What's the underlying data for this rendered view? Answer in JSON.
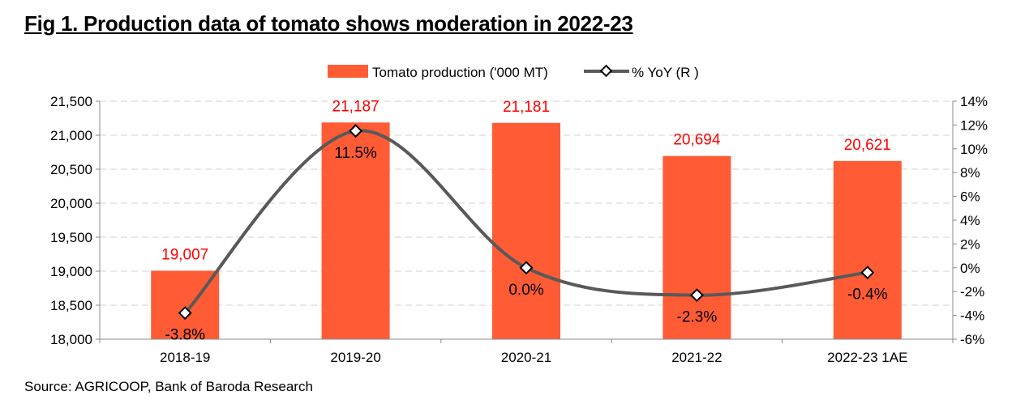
{
  "title": "Fig 1.  Production data of tomato shows moderation in 2022-23",
  "source": "Source: AGRICOOP, Bank of Baroda Research",
  "colors": {
    "bar": "#FF5B35",
    "line": "#595959",
    "bar_label": "#FF0000"
  },
  "chart_data": {
    "type": "bar+line",
    "categories": [
      "2018-19",
      "2019-20",
      "2020-21",
      "2021-22",
      "2022-23 1AE"
    ],
    "series": [
      {
        "name": "Tomato production ('000 MT)",
        "axis": "left",
        "type": "bar",
        "values": [
          19007,
          21187,
          21181,
          20694,
          20621
        ],
        "labels": [
          "19,007",
          "21,187",
          "21,181",
          "20,694",
          "20,621"
        ]
      },
      {
        "name": "% YoY (R )",
        "axis": "right",
        "type": "line",
        "values": [
          -3.8,
          11.5,
          0.0,
          -2.3,
          -0.4
        ],
        "labels": [
          "-3.8%",
          "11.5%",
          "0.0%",
          "-2.3%",
          "-0.4%"
        ]
      }
    ],
    "y_left": {
      "range": [
        18000,
        21500
      ],
      "ticks": [
        18000,
        18500,
        19000,
        19500,
        20000,
        20500,
        21000,
        21500
      ],
      "tick_labels": [
        "18,000",
        "18,500",
        "19,000",
        "19,500",
        "20,000",
        "20,500",
        "21,000",
        "21,500"
      ]
    },
    "y_right": {
      "range": [
        -6,
        14
      ],
      "ticks": [
        -6,
        -4,
        -2,
        0,
        2,
        4,
        6,
        8,
        10,
        12,
        14
      ],
      "tick_labels": [
        "-6%",
        "-4%",
        "-2%",
        "0%",
        "2%",
        "4%",
        "6%",
        "8%",
        "10%",
        "12%",
        "14%"
      ]
    },
    "grid": true,
    "legend_position": "top-center"
  }
}
